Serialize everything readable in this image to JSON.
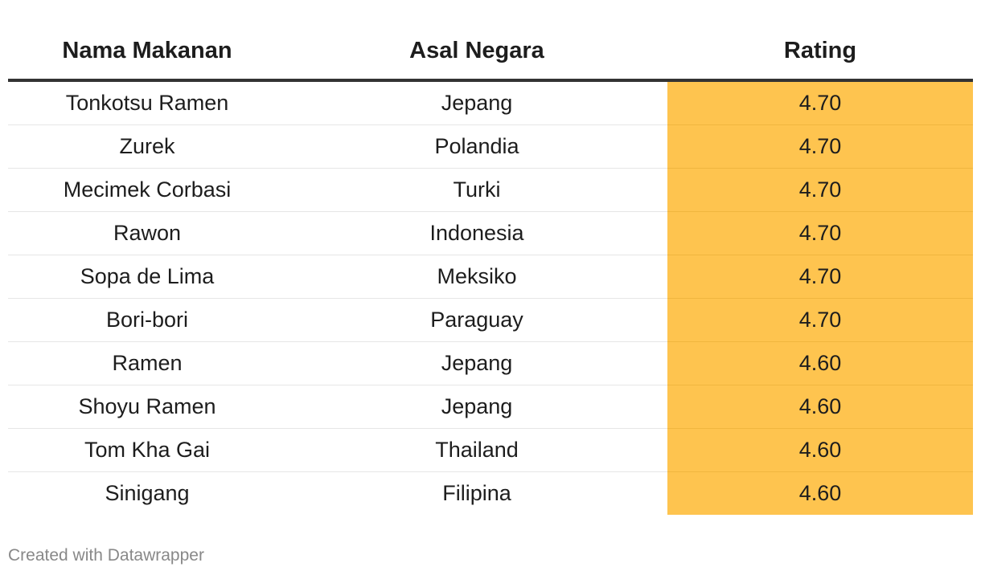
{
  "chart_data": {
    "type": "table",
    "columns": [
      "Nama Makanan",
      "Asal Negara",
      "Rating"
    ],
    "rows": [
      {
        "name": "Tonkotsu Ramen",
        "country": "Jepang",
        "rating": "4.70"
      },
      {
        "name": "Zurek",
        "country": "Polandia",
        "rating": "4.70"
      },
      {
        "name": "Mecimek Corbasi",
        "country": "Turki",
        "rating": "4.70"
      },
      {
        "name": "Rawon",
        "country": "Indonesia",
        "rating": "4.70"
      },
      {
        "name": "Sopa de Lima",
        "country": "Meksiko",
        "rating": "4.70"
      },
      {
        "name": "Bori-bori",
        "country": "Paraguay",
        "rating": "4.70"
      },
      {
        "name": "Ramen",
        "country": "Jepang",
        "rating": "4.60"
      },
      {
        "name": "Shoyu Ramen",
        "country": "Jepang",
        "rating": "4.60"
      },
      {
        "name": "Tom Kha Gai",
        "country": "Thailand",
        "rating": "4.60"
      },
      {
        "name": "Sinigang",
        "country": "Filipina",
        "rating": "4.60"
      }
    ],
    "rating_highlight_color": "#fec44f"
  },
  "footer": "Created with Datawrapper"
}
